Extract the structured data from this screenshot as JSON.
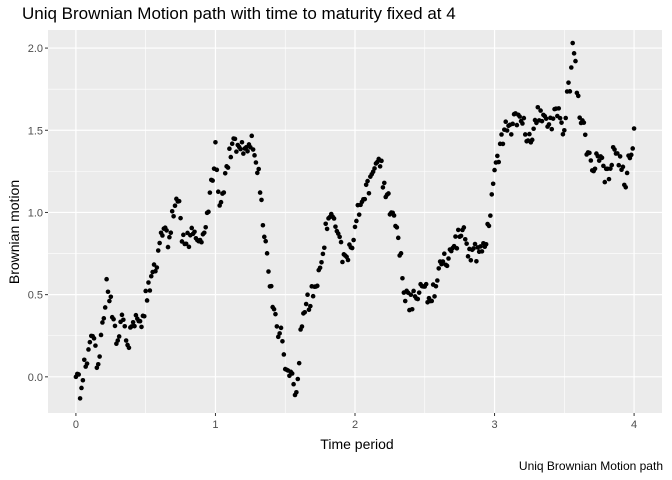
{
  "chart_data": {
    "type": "scatter",
    "title": "Uniq Brownian Motion path with time to maturity fixed at 4",
    "xlabel": "Time period",
    "ylabel": "Brownian motion",
    "caption": "Uniq Brownian Motion path",
    "xlim": [
      -0.2,
      4.2
    ],
    "ylim": [
      -0.22,
      2.11
    ],
    "x_ticks": [
      0,
      1,
      2,
      3,
      4
    ],
    "y_ticks": [
      0.0,
      0.5,
      1.0,
      1.5,
      2.0
    ],
    "x_tick_labels": [
      "0",
      "1",
      "2",
      "3",
      "4"
    ],
    "y_tick_labels": [
      "0.0",
      "0.5",
      "1.0",
      "1.5",
      "2.0"
    ],
    "grid": true,
    "legend": "none",
    "colors": {
      "panel": "#ebebeb",
      "grid": "#ffffff",
      "point": "#000000"
    },
    "knots": [
      [
        0.0,
        0.0
      ],
      [
        0.02,
        -0.04
      ],
      [
        0.03,
        -0.12
      ],
      [
        0.05,
        0.05
      ],
      [
        0.09,
        0.14
      ],
      [
        0.12,
        0.3
      ],
      [
        0.15,
        0.06
      ],
      [
        0.2,
        0.38
      ],
      [
        0.22,
        0.56
      ],
      [
        0.26,
        0.38
      ],
      [
        0.29,
        0.22
      ],
      [
        0.34,
        0.36
      ],
      [
        0.37,
        0.2
      ],
      [
        0.42,
        0.36
      ],
      [
        0.46,
        0.28
      ],
      [
        0.5,
        0.48
      ],
      [
        0.55,
        0.6
      ],
      [
        0.59,
        0.75
      ],
      [
        0.63,
        0.9
      ],
      [
        0.67,
        0.82
      ],
      [
        0.72,
        1.15
      ],
      [
        0.76,
        0.86
      ],
      [
        0.8,
        0.82
      ],
      [
        0.86,
        0.9
      ],
      [
        0.92,
        0.84
      ],
      [
        0.98,
        1.25
      ],
      [
        1.0,
        1.4
      ],
      [
        1.03,
        1.0
      ],
      [
        1.07,
        1.25
      ],
      [
        1.12,
        1.43
      ],
      [
        1.17,
        1.35
      ],
      [
        1.21,
        1.38
      ],
      [
        1.25,
        1.43
      ],
      [
        1.3,
        1.3
      ],
      [
        1.34,
        0.95
      ],
      [
        1.38,
        0.65
      ],
      [
        1.43,
        0.35
      ],
      [
        1.47,
        0.25
      ],
      [
        1.5,
        0.1
      ],
      [
        1.55,
        0.05
      ],
      [
        1.58,
        -0.1
      ],
      [
        1.61,
        0.25
      ],
      [
        1.66,
        0.45
      ],
      [
        1.72,
        0.55
      ],
      [
        1.77,
        0.8
      ],
      [
        1.82,
        1.0
      ],
      [
        1.87,
        0.88
      ],
      [
        1.91,
        0.72
      ],
      [
        1.96,
        0.75
      ],
      [
        2.0,
        0.95
      ],
      [
        2.05,
        1.05
      ],
      [
        2.1,
        1.15
      ],
      [
        2.14,
        1.25
      ],
      [
        2.18,
        1.3
      ],
      [
        2.22,
        1.1
      ],
      [
        2.27,
        1.0
      ],
      [
        2.31,
        0.85
      ],
      [
        2.35,
        0.55
      ],
      [
        2.39,
        0.45
      ],
      [
        2.44,
        0.5
      ],
      [
        2.48,
        0.6
      ],
      [
        2.52,
        0.48
      ],
      [
        2.57,
        0.55
      ],
      [
        2.63,
        0.68
      ],
      [
        2.7,
        0.75
      ],
      [
        2.76,
        0.9
      ],
      [
        2.82,
        0.75
      ],
      [
        2.88,
        0.75
      ],
      [
        2.94,
        0.82
      ],
      [
        2.98,
        1.1
      ],
      [
        3.02,
        1.32
      ],
      [
        3.06,
        1.47
      ],
      [
        3.1,
        1.52
      ],
      [
        3.14,
        1.55
      ],
      [
        3.18,
        1.62
      ],
      [
        3.22,
        1.5
      ],
      [
        3.26,
        1.45
      ],
      [
        3.31,
        1.62
      ],
      [
        3.36,
        1.6
      ],
      [
        3.4,
        1.52
      ],
      [
        3.45,
        1.62
      ],
      [
        3.5,
        1.5
      ],
      [
        3.52,
        1.75
      ],
      [
        3.54,
        1.8
      ],
      [
        3.56,
        2.0
      ],
      [
        3.58,
        1.85
      ],
      [
        3.62,
        1.55
      ],
      [
        3.66,
        1.4
      ],
      [
        3.7,
        1.3
      ],
      [
        3.74,
        1.35
      ],
      [
        3.78,
        1.25
      ],
      [
        3.82,
        1.18
      ],
      [
        3.86,
        1.4
      ],
      [
        3.9,
        1.3
      ],
      [
        3.94,
        1.2
      ],
      [
        3.98,
        1.42
      ],
      [
        4.0,
        1.48
      ]
    ]
  }
}
